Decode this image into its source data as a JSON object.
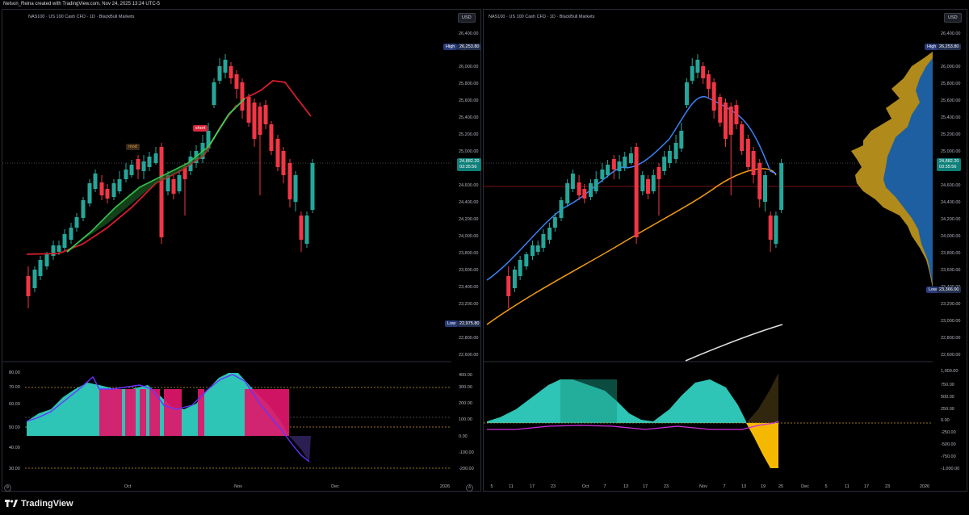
{
  "credit": "Nelson_Reina created with TradingView.com, Nov 24, 2025 13:24 UTC-5",
  "brand": "TradingView",
  "left": {
    "title": "NAS100 · US 100 Cash CFD · 1D · BlackBull Markets",
    "currency": "USD",
    "price_ticks": [
      "26,400.00",
      "26,200.00",
      "26,000.00",
      "25,800.00",
      "25,600.00",
      "25,400.00",
      "25,200.00",
      "25,000.00",
      "24,600.00",
      "24,400.00",
      "24,200.00",
      "24,000.00",
      "23,800.00",
      "23,600.00",
      "23,400.00",
      "23,200.00",
      "22,800.00",
      "22,600.00"
    ],
    "high_label": "High",
    "high_value": "26,253.80",
    "low_label": "Low",
    "low_value": "22,975.80",
    "last_price": "24,882.20",
    "countdown": "03:35:56",
    "osc_left_ticks": [
      "80.00",
      "70.00",
      "60.00",
      "50.00",
      "40.00",
      "30.00"
    ],
    "osc_right_ticks": [
      "400.00",
      "300.00",
      "200.00",
      "100.00",
      "0.00",
      "-100.00",
      "-200.00"
    ],
    "time_ticks": [
      "Oct",
      "Nov",
      "Dec",
      "2026"
    ],
    "signal_short": "short",
    "signal_mod": "mod"
  },
  "right": {
    "title": "NAS100 · US 100 Cash CFD · 1D · BlackBull Markets",
    "currency": "USD",
    "price_ticks": [
      "26,400.00",
      "26,000.00",
      "25,800.00",
      "25,600.00",
      "25,400.00",
      "25,200.00",
      "25,000.00",
      "24,800.00",
      "24,600.00",
      "24,400.00",
      "24,200.00",
      "24,000.00",
      "23,800.00",
      "23,600.00",
      "23,400.00",
      "23,200.00",
      "23,000.00",
      "22,800.00",
      "22,600.00"
    ],
    "high_label": "High",
    "high_value": "26,253.80",
    "low_label": "Low",
    "low_value": "23,366.00",
    "last_price": "24,882.20",
    "countdown": "03:35:56",
    "osc_ticks": [
      "1,000.00",
      "750.00",
      "500.00",
      "250.00",
      "0.00",
      "-250.00",
      "-500.00",
      "-750.00",
      "-1,000.00"
    ],
    "time_ticks": [
      "5",
      "11",
      "17",
      "23",
      "Oct",
      "7",
      "13",
      "17",
      "23",
      "Nov",
      "7",
      "13",
      "19",
      "25",
      "Dec",
      "5",
      "11",
      "17",
      "23",
      "2026"
    ]
  },
  "colors": {
    "up": "#26a69a",
    "down": "#f23645",
    "bg": "#000000",
    "teal_fill": "#2ec4b6",
    "pink_fill": "#e0166b"
  }
}
